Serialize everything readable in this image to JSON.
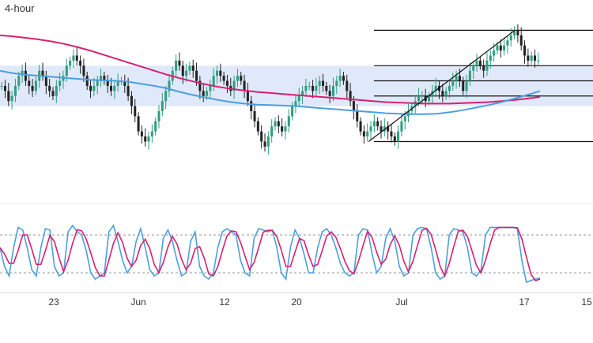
{
  "chart_data": {
    "type": "candlestick",
    "timeframe": "4-hour",
    "x_ticks": [
      "23",
      "Jun",
      "12",
      "20",
      "Jul",
      "17",
      "15"
    ],
    "colors": {
      "bull": "#2e9e80",
      "bear": "#222222",
      "ma_fast": "#4a9fe0",
      "ma_slow": "#d9206f",
      "zone": "#d6e2f7",
      "stoch_k": "#4a9fe0",
      "stoch_d": "#d9206f"
    },
    "zone": {
      "top": 1.093,
      "bottom": 1.085
    },
    "fib_levels": [
      1.1,
      1.093,
      1.09,
      1.087,
      1.078
    ],
    "trendline": {
      "from": [
        0.63,
        1.078
      ],
      "to": [
        0.867,
        1.1
      ]
    },
    "price_series": [
      1.089,
      1.088,
      1.086,
      1.087,
      1.089,
      1.091,
      1.092,
      1.09,
      1.089,
      1.088,
      1.09,
      1.092,
      1.091,
      1.089,
      1.088,
      1.087,
      1.089,
      1.09,
      1.091,
      1.093,
      1.094,
      1.095,
      1.094,
      1.093,
      1.091,
      1.089,
      1.088,
      1.089,
      1.09,
      1.091,
      1.09,
      1.089,
      1.088,
      1.089,
      1.09,
      1.09,
      1.089,
      1.087,
      1.085,
      1.083,
      1.08,
      1.079,
      1.078,
      1.079,
      1.08,
      1.082,
      1.084,
      1.086,
      1.088,
      1.09,
      1.092,
      1.094,
      1.093,
      1.091,
      1.092,
      1.093,
      1.092,
      1.09,
      1.088,
      1.087,
      1.088,
      1.089,
      1.091,
      1.092,
      1.091,
      1.09,
      1.089,
      1.088,
      1.09,
      1.091,
      1.09,
      1.088,
      1.086,
      1.084,
      1.082,
      1.08,
      1.078,
      1.077,
      1.079,
      1.081,
      1.082,
      1.081,
      1.08,
      1.081,
      1.083,
      1.085,
      1.086,
      1.087,
      1.088,
      1.089,
      1.089,
      1.088,
      1.089,
      1.09,
      1.089,
      1.088,
      1.087,
      1.089,
      1.09,
      1.091,
      1.09,
      1.088,
      1.086,
      1.084,
      1.082,
      1.08,
      1.079,
      1.08,
      1.081,
      1.082,
      1.081,
      1.08,
      1.081,
      1.08,
      1.079,
      1.078,
      1.08,
      1.082,
      1.083,
      1.084,
      1.085,
      1.086,
      1.087,
      1.087,
      1.086,
      1.087,
      1.088,
      1.089,
      1.088,
      1.087,
      1.088,
      1.089,
      1.09,
      1.091,
      1.09,
      1.088,
      1.09,
      1.092,
      1.093,
      1.094,
      1.093,
      1.092,
      1.094,
      1.095,
      1.096,
      1.097,
      1.096,
      1.097,
      1.098,
      1.099,
      1.1,
      1.099,
      1.097,
      1.095,
      1.094,
      1.095,
      1.094,
      1.094
    ],
    "ma_fast": [
      1.092,
      1.0915,
      1.0912,
      1.091,
      1.0908,
      1.0906,
      1.0904,
      1.0902,
      1.0901,
      1.09,
      1.0898,
      1.0894,
      1.089,
      1.0885,
      1.0878,
      1.0872,
      1.0867,
      1.0862,
      1.0858,
      1.0855,
      1.0853,
      1.0852,
      1.0851,
      1.085,
      1.0848,
      1.0846,
      1.0844,
      1.0842,
      1.084,
      1.0838,
      1.0836,
      1.0835,
      1.0834,
      1.0834,
      1.0835,
      1.0838,
      1.0842,
      1.0847,
      1.0852,
      1.0858,
      1.0865,
      1.0872,
      1.088
    ],
    "ma_slow": [
      1.099,
      1.0988,
      1.0985,
      1.0982,
      1.0978,
      1.0973,
      1.0967,
      1.096,
      1.0952,
      1.0944,
      1.0936,
      1.0928,
      1.092,
      1.0912,
      1.0905,
      1.0899,
      1.0893,
      1.0888,
      1.0884,
      1.0881,
      1.0878,
      1.0876,
      1.0874,
      1.0872,
      1.087,
      1.0868,
      1.0866,
      1.0864,
      1.0862,
      1.086,
      1.0858,
      1.0857,
      1.0856,
      1.0855,
      1.0855,
      1.0855,
      1.0856,
      1.0857,
      1.0858,
      1.086,
      1.0862,
      1.0865,
      1.0868
    ],
    "stochastic": {
      "upper_level": 80,
      "lower_level": 20,
      "k": [
        60,
        30,
        15,
        60,
        92,
        88,
        60,
        25,
        15,
        60,
        90,
        88,
        30,
        15,
        20,
        85,
        95,
        85,
        80,
        55,
        20,
        10,
        15,
        20,
        85,
        95,
        70,
        40,
        20,
        30,
        70,
        90,
        60,
        25,
        15,
        20,
        75,
        88,
        70,
        40,
        15,
        20,
        70,
        85,
        30,
        15,
        10,
        20,
        60,
        85,
        90,
        85,
        80,
        40,
        20,
        15,
        75,
        90,
        88,
        85,
        88,
        60,
        20,
        10,
        60,
        88,
        75,
        50,
        20,
        20,
        60,
        85,
        90,
        80,
        60,
        35,
        20,
        15,
        20,
        80,
        90,
        88,
        50,
        20,
        30,
        75,
        90,
        70,
        30,
        15,
        20,
        80,
        90,
        92,
        90,
        60,
        20,
        10,
        15,
        80,
        90,
        88,
        85,
        60,
        20,
        15,
        25,
        80,
        92,
        92,
        92,
        92,
        92,
        92,
        90,
        40,
        5,
        8,
        10,
        12
      ]
    }
  }
}
